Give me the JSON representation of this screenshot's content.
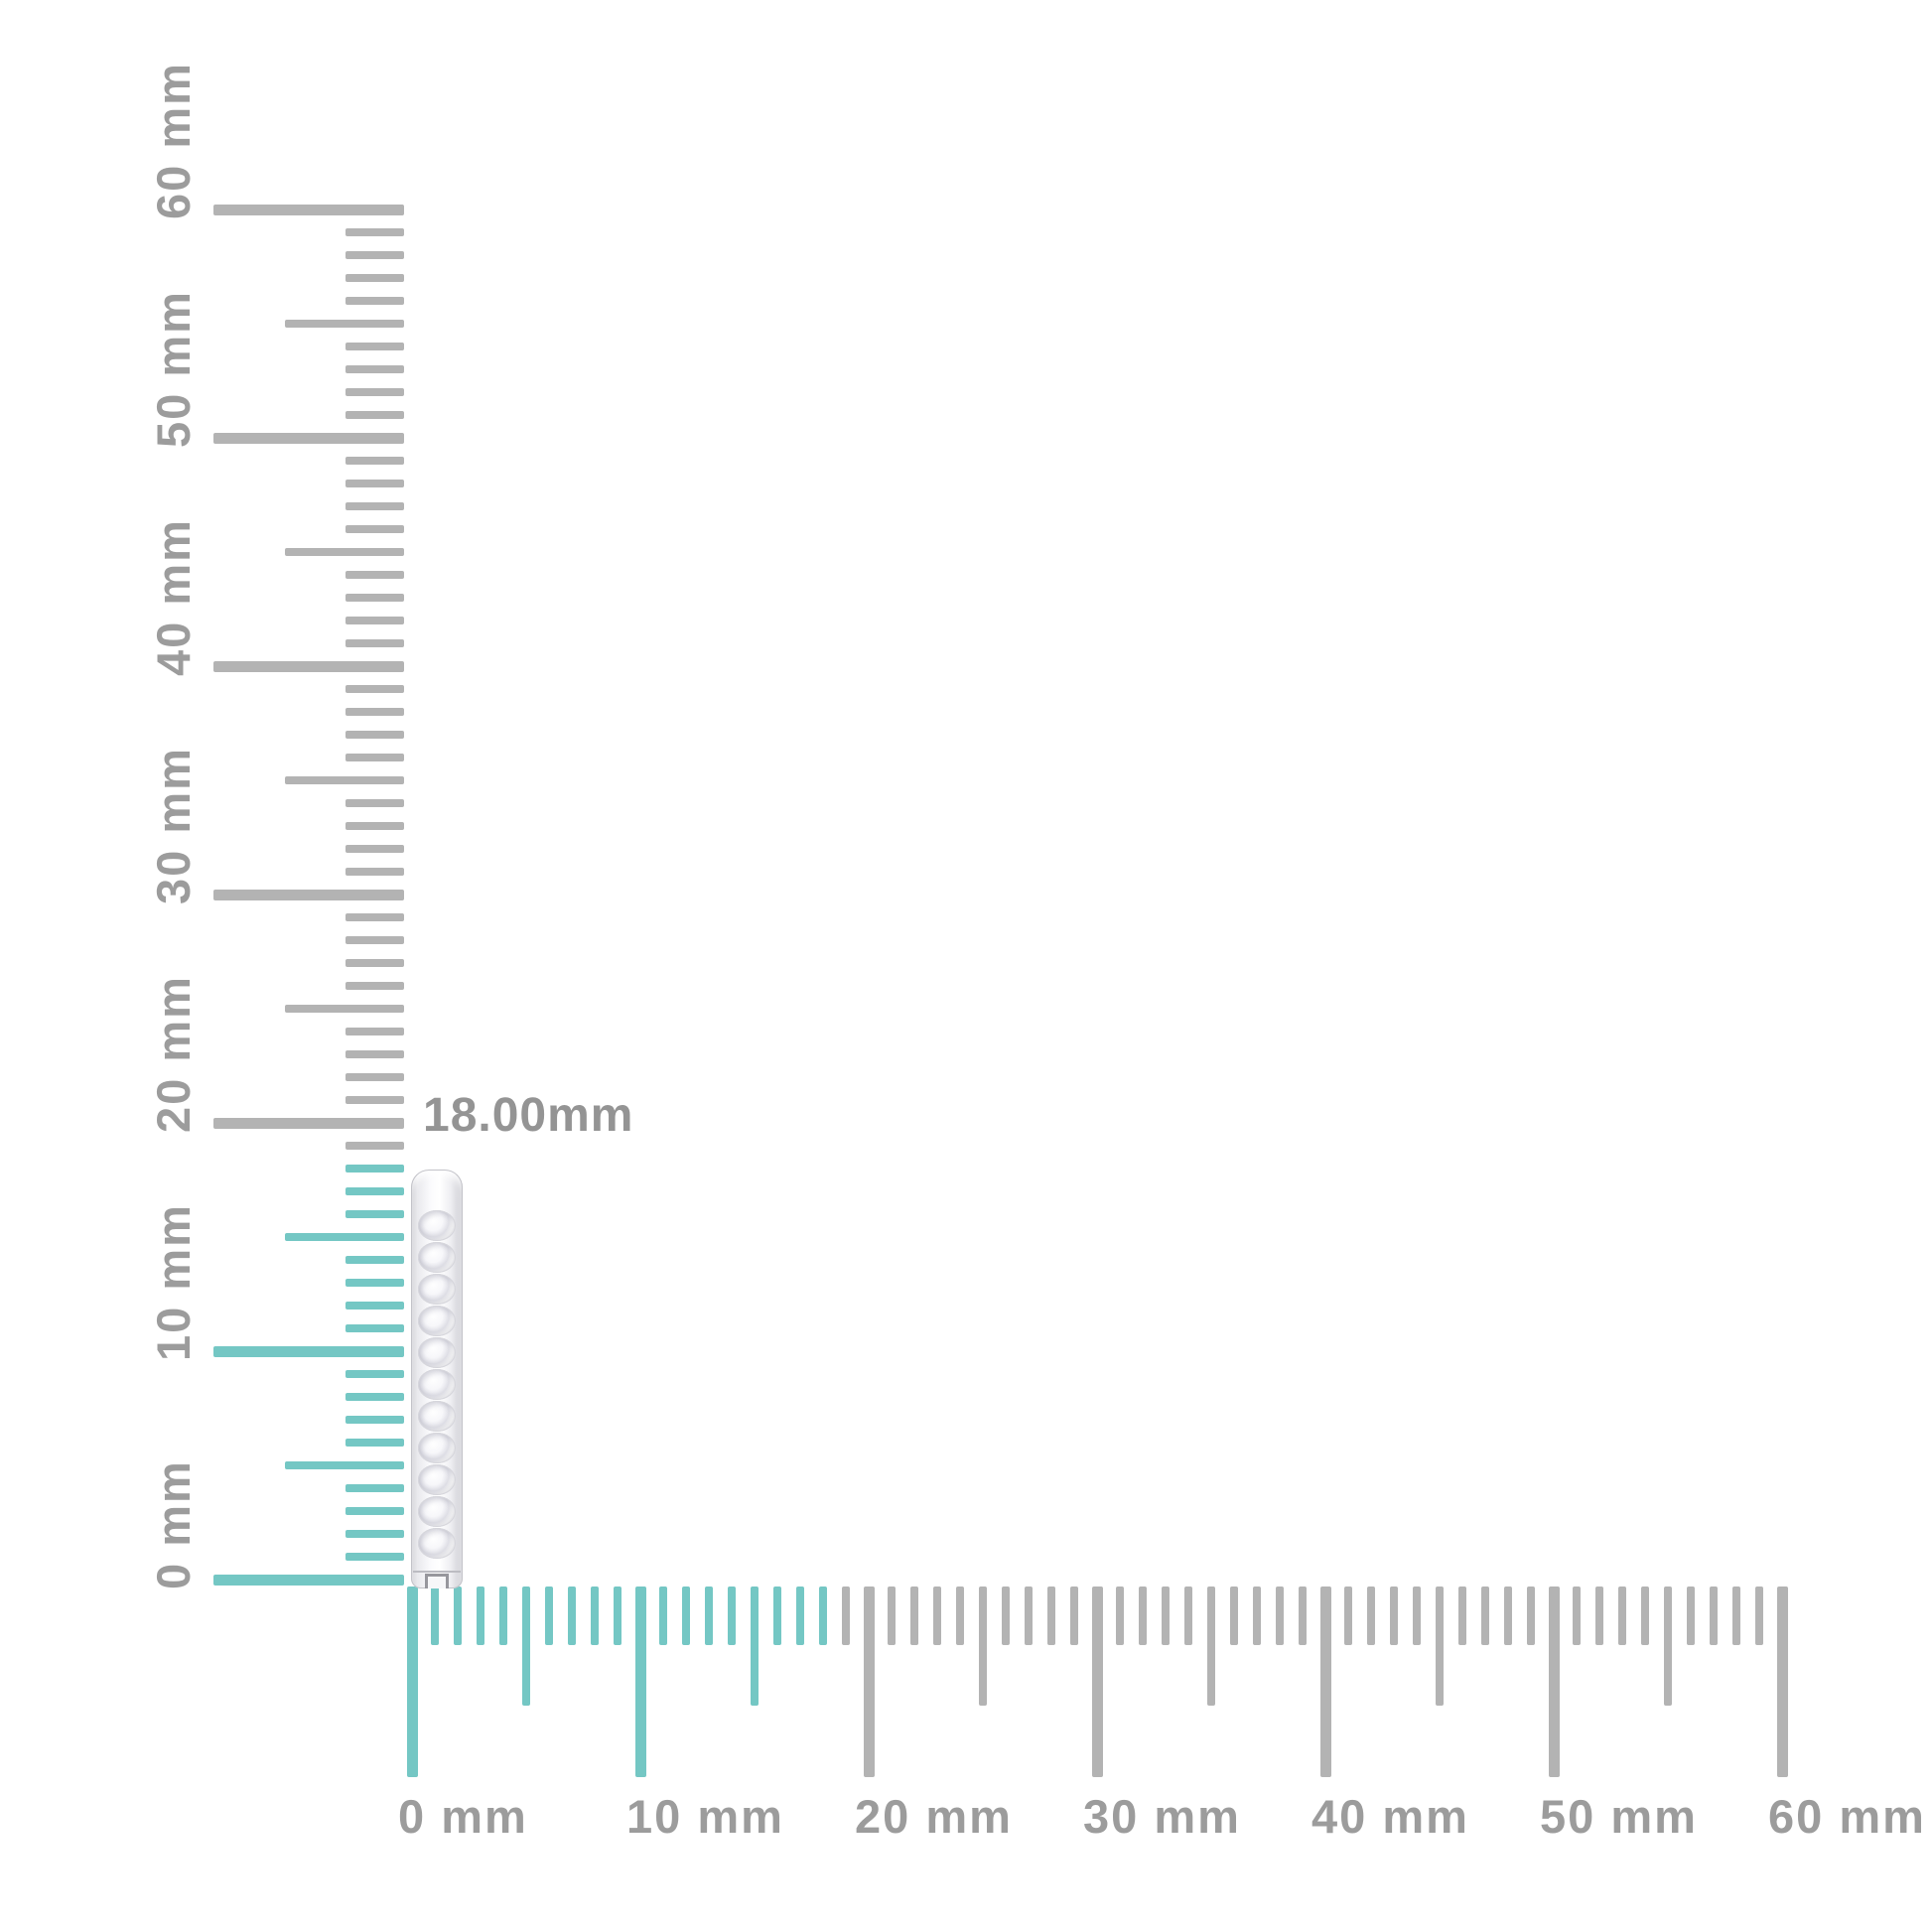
{
  "measurement": {
    "label": "18.00mm",
    "value_mm": 18.0
  },
  "item": {
    "name": "diamond pave hoop earring, side profile",
    "diamond_count": 11
  },
  "rulers": {
    "vertical": {
      "unit": "mm",
      "min_mm": 0,
      "max_mm": 60,
      "tick_step_mm": 1,
      "medium_step_mm": 5,
      "major_step_mm": 10,
      "major_labels": [
        "0 mm",
        "10 mm",
        "20 mm",
        "30 mm",
        "40 mm",
        "50 mm",
        "60 mm"
      ],
      "highlighted_range_mm": [
        0,
        18
      ]
    },
    "horizontal": {
      "unit": "mm",
      "min_mm": 0,
      "max_mm": 60,
      "tick_step_mm": 1,
      "medium_step_mm": 5,
      "major_step_mm": 10,
      "major_labels": [
        "0 mm",
        "10 mm",
        "20 mm",
        "30 mm",
        "40 mm",
        "50 mm",
        "60 mm"
      ],
      "highlighted_range_mm": [
        0,
        18
      ]
    }
  },
  "colors": {
    "highlight_teal": "#74c7c4",
    "tick_gray": "#b3b3b3",
    "ruler_label_gray": "#9c9c9c",
    "measurement_label_gray": "#949494",
    "background": "#ffffff",
    "metal_light": "#f5f5f7",
    "metal_shadow": "#c9c9cf",
    "diamond_outline": "#d6d6dc"
  }
}
